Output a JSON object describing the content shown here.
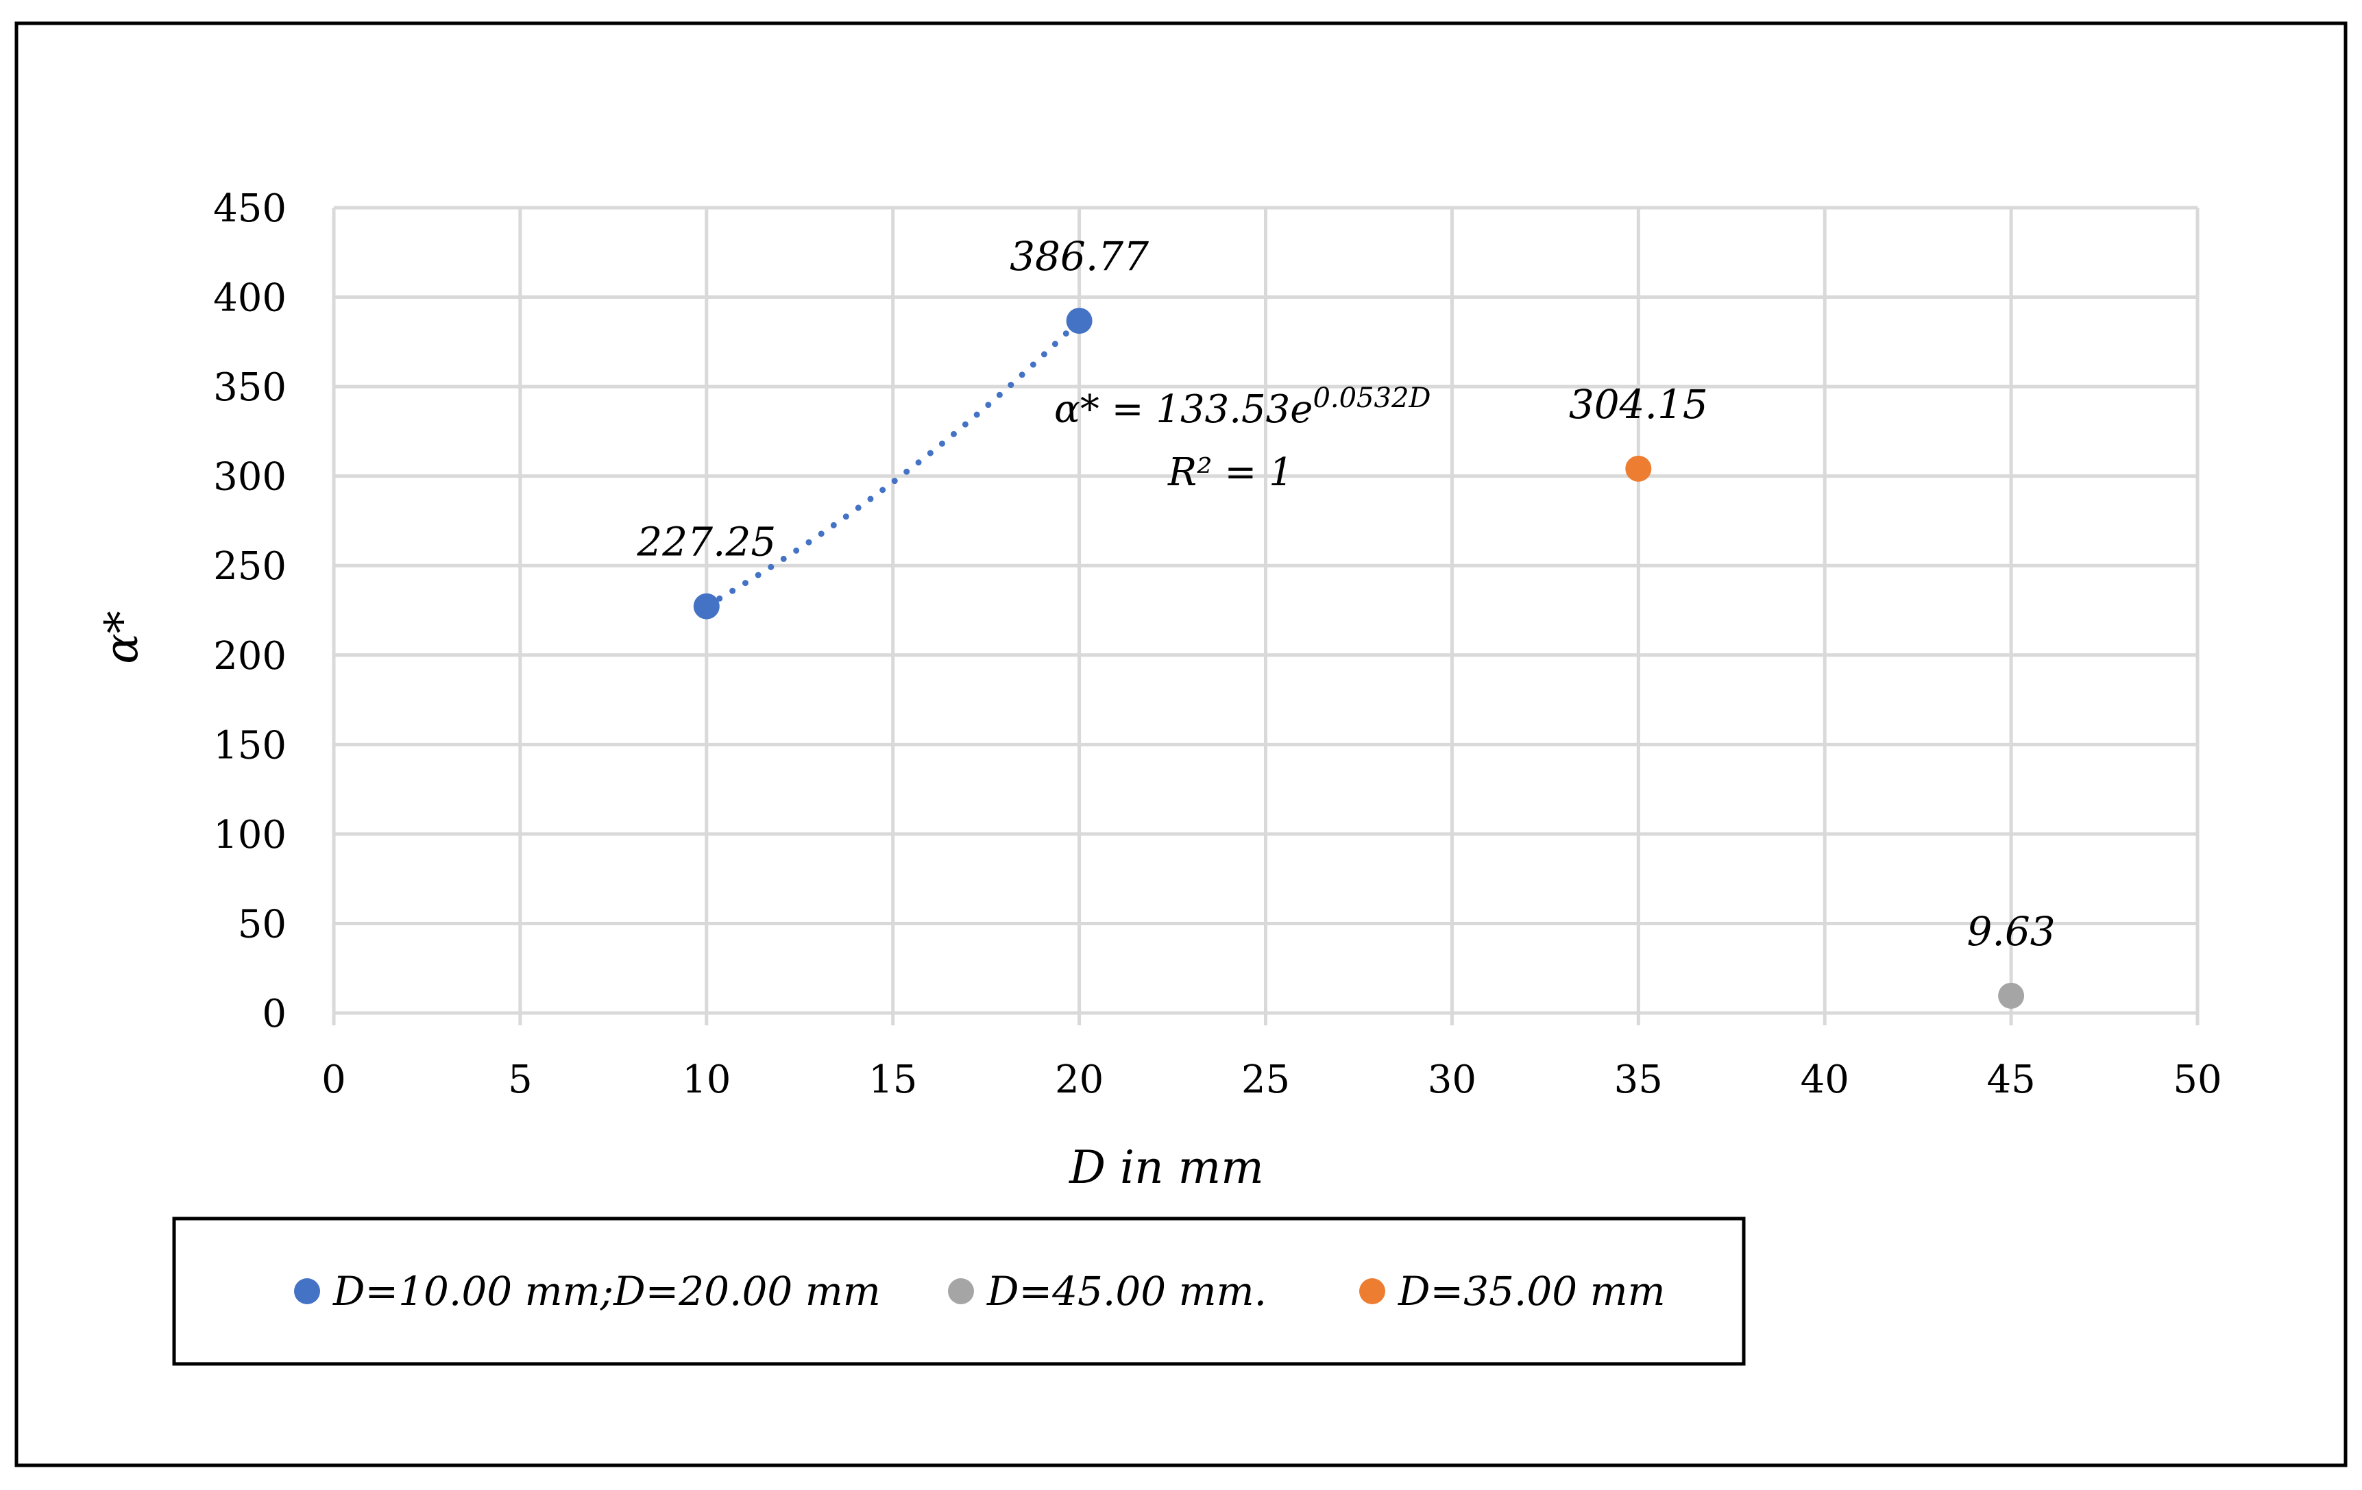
{
  "chart_data": {
    "type": "scatter",
    "xlabel": "D in mm",
    "ylabel": "α*",
    "xlim": [
      0,
      50
    ],
    "ylim": [
      0,
      450
    ],
    "xticks": [
      "0",
      "5",
      "10",
      "15",
      "20",
      "25",
      "30",
      "35",
      "40",
      "45",
      "50"
    ],
    "yticks": [
      "0",
      "50",
      "100",
      "150",
      "200",
      "250",
      "300",
      "350",
      "400",
      "450"
    ],
    "grid": true,
    "legend_position": "bottom",
    "series": [
      {
        "name": "D=10.00 mm;D=20.00 mm",
        "color": "#4472C4",
        "points": [
          {
            "x": 10,
            "y": 227.25,
            "label": "227.25"
          },
          {
            "x": 20,
            "y": 386.77,
            "label": "386.77"
          }
        ],
        "trendline": {
          "type": "exponential",
          "style": "dotted",
          "a": 133.53,
          "b": 0.0532,
          "x_range": [
            10,
            20
          ],
          "equation_main": "α* = 133.53e",
          "equation_exp": "0.0532D",
          "r2_text": "R² = 1"
        }
      },
      {
        "name": "D=45.00 mm.",
        "color": "#A5A5A5",
        "points": [
          {
            "x": 45,
            "y": 9.63,
            "label": "9.63"
          }
        ]
      },
      {
        "name": "D=35.00 mm",
        "color": "#ED7D31",
        "points": [
          {
            "x": 35,
            "y": 304.15,
            "label": "304.15"
          }
        ]
      }
    ],
    "legend_order": [
      0,
      1,
      2
    ]
  }
}
